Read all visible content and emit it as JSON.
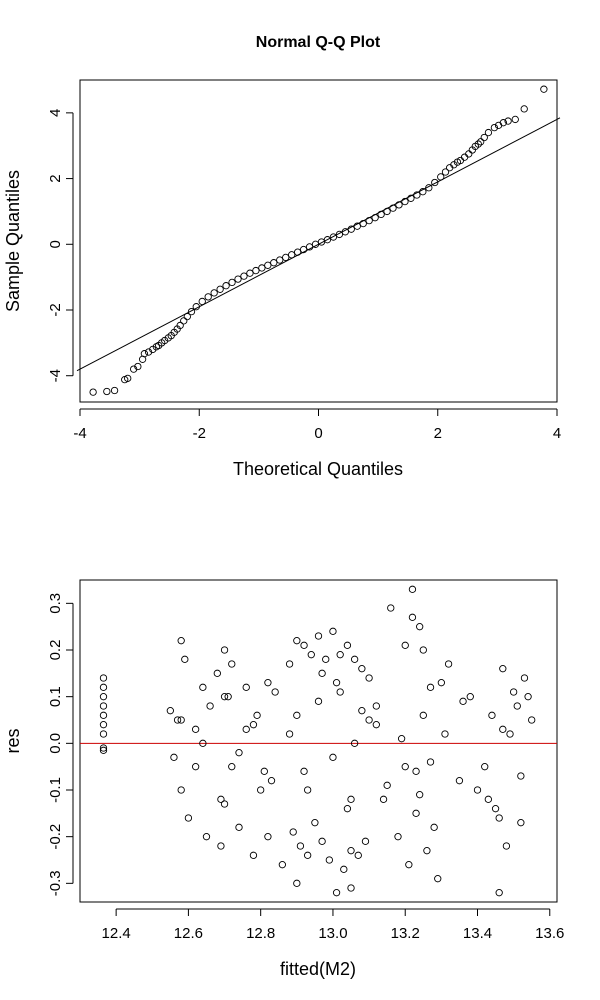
{
  "chart_data": [
    {
      "type": "scatter",
      "title": "Normal Q-Q Plot",
      "xlabel": "Theoretical Quantiles",
      "ylabel": "Sample Quantiles",
      "xlim": [
        -4,
        4
      ],
      "ylim": [
        -4.8,
        5.0
      ],
      "xticks": [
        "-4",
        "-2",
        "0",
        "2",
        "4"
      ],
      "yticks": [
        "-4",
        "-2",
        "0",
        "2",
        "4"
      ],
      "grid": false,
      "marker": "open-circle",
      "reference_line": {
        "intercept": 0.0,
        "slope": 0.95,
        "color": "#000000"
      },
      "x": [
        -3.78,
        -3.55,
        -3.42,
        -3.25,
        -3.2,
        -3.1,
        -3.03,
        -2.95,
        -2.92,
        -2.85,
        -2.78,
        -2.72,
        -2.68,
        -2.63,
        -2.58,
        -2.52,
        -2.47,
        -2.42,
        -2.37,
        -2.32,
        -2.26,
        -2.2,
        -2.13,
        -2.05,
        -1.95,
        -1.85,
        -1.75,
        -1.65,
        -1.55,
        -1.45,
        -1.35,
        -1.25,
        -1.15,
        -1.05,
        -0.95,
        -0.85,
        -0.75,
        -0.65,
        -0.55,
        -0.45,
        -0.35,
        -0.25,
        -0.15,
        -0.05,
        0.05,
        0.15,
        0.25,
        0.35,
        0.45,
        0.55,
        0.65,
        0.75,
        0.85,
        0.95,
        1.05,
        1.15,
        1.25,
        1.35,
        1.45,
        1.55,
        1.65,
        1.75,
        1.85,
        1.95,
        2.05,
        2.13,
        2.2,
        2.27,
        2.33,
        2.38,
        2.45,
        2.52,
        2.58,
        2.63,
        2.68,
        2.72,
        2.78,
        2.85,
        2.95,
        3.02,
        3.1,
        3.18,
        3.3,
        3.45,
        3.78
      ],
      "y": [
        -4.5,
        -4.48,
        -4.45,
        -4.12,
        -4.08,
        -3.8,
        -3.72,
        -3.5,
        -3.33,
        -3.28,
        -3.2,
        -3.12,
        -3.08,
        -3.0,
        -2.93,
        -2.85,
        -2.78,
        -2.68,
        -2.58,
        -2.47,
        -2.33,
        -2.2,
        -2.05,
        -1.9,
        -1.74,
        -1.6,
        -1.48,
        -1.37,
        -1.26,
        -1.16,
        -1.06,
        -0.97,
        -0.88,
        -0.8,
        -0.72,
        -0.64,
        -0.56,
        -0.48,
        -0.4,
        -0.32,
        -0.24,
        -0.16,
        -0.08,
        0.0,
        0.07,
        0.14,
        0.22,
        0.3,
        0.38,
        0.46,
        0.55,
        0.63,
        0.72,
        0.81,
        0.91,
        1.0,
        1.1,
        1.2,
        1.3,
        1.4,
        1.5,
        1.6,
        1.72,
        1.88,
        2.05,
        2.2,
        2.33,
        2.42,
        2.5,
        2.55,
        2.65,
        2.75,
        2.87,
        2.98,
        3.05,
        3.12,
        3.25,
        3.4,
        3.55,
        3.62,
        3.7,
        3.75,
        3.8,
        4.12,
        4.72
      ]
    },
    {
      "type": "scatter",
      "title": "",
      "xlabel": "fitted(M2)",
      "ylabel": "res",
      "xlim": [
        12.3,
        13.62
      ],
      "ylim": [
        -0.34,
        0.35
      ],
      "xticks": [
        "12.4",
        "12.6",
        "12.8",
        "13.0",
        "13.2",
        "13.4",
        "13.6"
      ],
      "yticks": [
        "-0.3",
        "-0.2",
        "-0.1",
        "0.0",
        "0.1",
        "0.2",
        "0.3"
      ],
      "grid": false,
      "marker": "open-circle",
      "reference_line": {
        "y": 0.0,
        "color": "#cc0000"
      },
      "x": [
        12.365,
        12.365,
        12.365,
        12.365,
        12.365,
        12.365,
        12.365,
        12.365,
        12.365,
        12.55,
        12.56,
        12.57,
        12.58,
        12.58,
        12.59,
        12.6,
        12.62,
        12.64,
        12.65,
        12.66,
        12.68,
        12.69,
        12.7,
        12.7,
        12.71,
        12.72,
        12.72,
        12.74,
        12.76,
        12.78,
        12.79,
        12.8,
        12.82,
        12.82,
        12.84,
        12.86,
        12.88,
        12.89,
        12.9,
        12.91,
        12.92,
        12.93,
        12.94,
        12.95,
        12.96,
        12.97,
        12.98,
        12.99,
        13.0,
        13.01,
        13.02,
        13.03,
        13.04,
        13.05,
        13.06,
        13.07,
        13.08,
        13.09,
        13.1,
        13.12,
        13.14,
        13.16,
        13.18,
        13.2,
        13.21,
        13.22,
        13.23,
        13.24,
        13.25,
        13.26,
        13.27,
        13.28,
        13.3,
        13.32,
        13.35,
        13.38,
        13.4,
        13.42,
        13.44,
        13.45,
        13.46,
        13.47,
        13.48,
        13.5,
        13.51,
        13.52,
        13.53,
        13.54,
        13.55,
        12.58,
        12.62,
        12.7,
        12.74,
        12.78,
        12.83,
        12.9,
        12.92,
        12.96,
        13.0,
        13.02,
        13.05,
        13.08,
        13.12,
        13.2,
        13.22,
        13.25,
        13.27,
        13.31,
        13.47,
        13.52,
        12.64,
        12.69,
        12.76,
        12.81,
        12.88,
        12.93,
        12.97,
        13.01,
        13.04,
        13.06,
        13.1,
        13.15,
        13.19,
        13.24,
        13.29,
        13.36,
        13.43,
        13.49,
        12.9,
        13.05,
        13.23,
        13.46
      ],
      "y": [
        0.14,
        0.12,
        0.1,
        0.08,
        0.06,
        0.04,
        0.02,
        -0.01,
        -0.015,
        0.07,
        -0.03,
        0.05,
        0.22,
        -0.1,
        0.18,
        -0.16,
        0.03,
        0.12,
        -0.2,
        0.08,
        0.15,
        -0.22,
        0.2,
        -0.13,
        0.1,
        -0.05,
        0.17,
        -0.18,
        0.12,
        -0.24,
        0.06,
        -0.1,
        0.13,
        -0.2,
        0.11,
        -0.26,
        0.17,
        -0.19,
        0.22,
        -0.22,
        0.21,
        -0.24,
        0.19,
        -0.17,
        0.23,
        -0.21,
        0.18,
        -0.25,
        0.24,
        -0.32,
        0.19,
        -0.27,
        0.21,
        -0.23,
        0.18,
        -0.24,
        0.16,
        -0.21,
        0.14,
        0.08,
        -0.12,
        0.29,
        -0.2,
        0.21,
        -0.26,
        0.27,
        -0.15,
        0.25,
        0.2,
        -0.23,
        0.12,
        -0.18,
        0.13,
        0.17,
        -0.08,
        0.1,
        -0.1,
        -0.05,
        0.06,
        -0.14,
        -0.32,
        0.16,
        -0.22,
        0.11,
        0.08,
        -0.17,
        0.14,
        0.1,
        0.05,
        0.05,
        -0.05,
        0.1,
        -0.02,
        0.04,
        -0.08,
        0.06,
        -0.06,
        0.09,
        -0.03,
        0.11,
        -0.12,
        0.07,
        0.04,
        -0.05,
        0.33,
        0.06,
        -0.04,
        0.02,
        0.03,
        -0.07,
        0.0,
        -0.12,
        0.03,
        -0.06,
        0.02,
        -0.1,
        0.15,
        0.13,
        -0.14,
        0.0,
        0.05,
        -0.09,
        0.01,
        -0.11,
        -0.29,
        0.09,
        -0.12,
        0.02,
        -0.3,
        -0.31,
        -0.06,
        -0.16
      ]
    }
  ]
}
